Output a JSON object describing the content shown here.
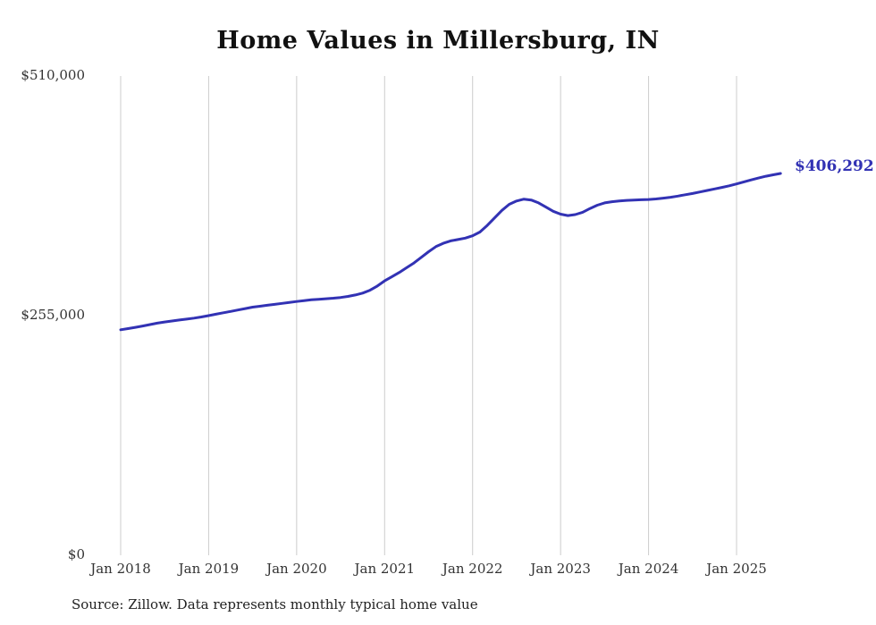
{
  "source_note": "Source: Zillow. Data represents monthly typical home value",
  "chart_data": {
    "type": "line",
    "title": "Home Values in Millersburg, IN",
    "series_name": "Monthly typical home value",
    "end_label": "$406,292",
    "end_value": 406292,
    "ylim": [
      0,
      510000
    ],
    "y_ticks": [
      0,
      255000,
      510000
    ],
    "y_tick_labels": [
      "$0",
      "$255,000",
      "$510,000"
    ],
    "x_tick_labels": [
      "Jan 2018",
      "Jan 2019",
      "Jan 2020",
      "Jan 2021",
      "Jan 2022",
      "Jan 2023",
      "Jan 2024",
      "Jan 2025"
    ],
    "grid": "vertical-only",
    "legend": "none",
    "line_color": "#3232b4",
    "grid_color": "#cccccc",
    "label_color": "#333333",
    "months": [
      "2018-01",
      "2018-02",
      "2018-03",
      "2018-04",
      "2018-05",
      "2018-06",
      "2018-07",
      "2018-08",
      "2018-09",
      "2018-10",
      "2018-11",
      "2018-12",
      "2019-01",
      "2019-02",
      "2019-03",
      "2019-04",
      "2019-05",
      "2019-06",
      "2019-07",
      "2019-08",
      "2019-09",
      "2019-10",
      "2019-11",
      "2019-12",
      "2020-01",
      "2020-02",
      "2020-03",
      "2020-04",
      "2020-05",
      "2020-06",
      "2020-07",
      "2020-08",
      "2020-09",
      "2020-10",
      "2020-11",
      "2020-12",
      "2021-01",
      "2021-02",
      "2021-03",
      "2021-04",
      "2021-05",
      "2021-06",
      "2021-07",
      "2021-08",
      "2021-09",
      "2021-10",
      "2021-11",
      "2021-12",
      "2022-01",
      "2022-02",
      "2022-03",
      "2022-04",
      "2022-05",
      "2022-06",
      "2022-07",
      "2022-08",
      "2022-09",
      "2022-10",
      "2022-11",
      "2022-12",
      "2023-01",
      "2023-02",
      "2023-03",
      "2023-04",
      "2023-05",
      "2023-06",
      "2023-07",
      "2023-08",
      "2023-09",
      "2023-10",
      "2023-11",
      "2023-12",
      "2024-01",
      "2024-02",
      "2024-03",
      "2024-04",
      "2024-05",
      "2024-06",
      "2024-07",
      "2024-08",
      "2024-09",
      "2024-10",
      "2024-11",
      "2024-12",
      "2025-01",
      "2025-02",
      "2025-03",
      "2025-04",
      "2025-05",
      "2025-06",
      "2025-07"
    ],
    "values": [
      240000,
      241200,
      242500,
      244000,
      245500,
      247000,
      248200,
      249300,
      250300,
      251300,
      252300,
      253600,
      255000,
      256500,
      258000,
      259500,
      261000,
      262500,
      264000,
      265000,
      266000,
      267000,
      268000,
      269000,
      270000,
      271000,
      271800,
      272400,
      273000,
      273600,
      274300,
      275500,
      277000,
      279000,
      282000,
      286500,
      292000,
      296500,
      301000,
      306000,
      311000,
      317000,
      323000,
      328500,
      332000,
      334500,
      336000,
      337500,
      340000,
      344000,
      351000,
      359000,
      367000,
      373500,
      377000,
      379000,
      378000,
      375000,
      370500,
      366000,
      363000,
      361500,
      362500,
      365000,
      369000,
      372500,
      375000,
      376200,
      377000,
      377600,
      378000,
      378300,
      378600,
      379200,
      380000,
      381000,
      382200,
      383600,
      385000,
      386600,
      388200,
      389800,
      391400,
      393200,
      395200,
      397300,
      399400,
      401400,
      403300,
      404900,
      406292
    ]
  }
}
